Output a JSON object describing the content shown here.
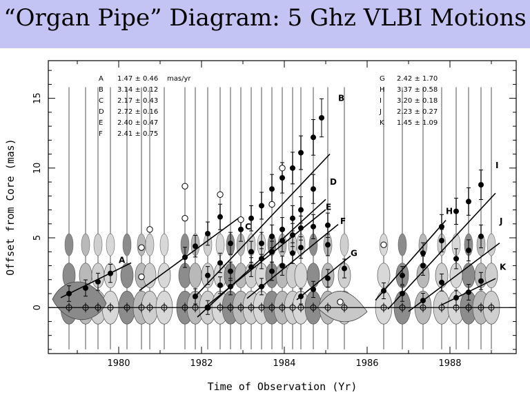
{
  "page": {
    "title": "“Organ Pipe” Diagram:  5 Ghz VLBI Motions"
  },
  "chart_data": {
    "type": "scatter",
    "title": "“Organ Pipe” Diagram:  5 Ghz VLBI Motions",
    "xlabel": "Time of Observation (Yr)",
    "ylabel": "Offset from Core (mas)",
    "xlim": [
      1978.3,
      1989.6
    ],
    "ylim": [
      -3.3,
      17.7
    ],
    "xticks": [
      1980,
      1982,
      1984,
      1986,
      1988
    ],
    "yticks": [
      0,
      5,
      10,
      15
    ],
    "units": "mas/yr",
    "legend_left": [
      {
        "id": "A",
        "text": "1.47 ± 0.46"
      },
      {
        "id": "B",
        "text": "3.14 ± 0.12"
      },
      {
        "id": "C",
        "text": "2.17 ± 0.43"
      },
      {
        "id": "D",
        "text": "2.72 ± 0.16"
      },
      {
        "id": "E",
        "text": "2.40 ± 0.47"
      },
      {
        "id": "F",
        "text": "2.41 ± 0.75"
      }
    ],
    "legend_right": [
      {
        "id": "G",
        "text": "2.42 ± 1.70"
      },
      {
        "id": "H",
        "text": "3.37 ± 0.58"
      },
      {
        "id": "I",
        "text": "3.20 ± 0.18"
      },
      {
        "id": "J",
        "text": "2.23 ± 0.27"
      },
      {
        "id": "K",
        "text": "1.45 ± 1.09"
      }
    ],
    "epochs": [
      1978.8,
      1979.2,
      1979.5,
      1979.8,
      1980.2,
      1980.55,
      1980.75,
      1981.1,
      1981.6,
      1981.85,
      1982.15,
      1982.45,
      1982.7,
      1982.95,
      1983.2,
      1983.45,
      1983.7,
      1983.95,
      1984.2,
      1984.4,
      1984.7,
      1985.05,
      1985.45,
      1986.4,
      1986.85,
      1987.35,
      1987.8,
      1988.15,
      1988.45,
      1988.75,
      1989.0
    ],
    "series": [
      {
        "name": "A",
        "slope": 1.47,
        "line": [
          1978.6,
          1980.3
        ],
        "label_at": [
          1980.0,
          3.2
        ],
        "points": [
          [
            1978.8,
            1.0
          ],
          [
            1979.2,
            1.4
          ],
          [
            1979.5,
            1.85
          ],
          [
            1979.8,
            2.45
          ]
        ]
      },
      {
        "name": "B",
        "slope": 3.14,
        "line": [
          1981.8,
          1985.1
        ],
        "label_at": [
          1985.3,
          14.8
        ],
        "points": [
          [
            1981.85,
            0.8
          ],
          [
            1982.15,
            2.3
          ],
          [
            1982.45,
            3.2
          ],
          [
            1982.7,
            4.6
          ],
          [
            1982.95,
            5.6
          ],
          [
            1983.2,
            6.4
          ],
          [
            1983.45,
            7.3
          ],
          [
            1983.7,
            8.5
          ],
          [
            1983.95,
            9.3
          ],
          [
            1984.2,
            10.0
          ],
          [
            1984.4,
            11.1
          ],
          [
            1984.7,
            12.2
          ],
          [
            1984.9,
            13.6
          ]
        ]
      },
      {
        "name": "C",
        "slope": 2.17,
        "line": [
          1980.5,
          1982.9
        ],
        "label_at": [
          1983.05,
          5.6
        ],
        "points": [
          [
            1981.6,
            3.6
          ],
          [
            1981.85,
            4.4
          ],
          [
            1982.15,
            5.3
          ],
          [
            1982.45,
            6.5
          ]
        ]
      },
      {
        "name": "D",
        "slope": 2.72,
        "line": [
          1981.9,
          1985.0
        ],
        "label_at": [
          1985.1,
          8.8
        ],
        "points": [
          [
            1982.15,
            0.0
          ],
          [
            1982.45,
            1.6
          ],
          [
            1982.7,
            2.6
          ],
          [
            1983.2,
            4.0
          ],
          [
            1983.45,
            4.6
          ],
          [
            1983.7,
            5.1
          ],
          [
            1983.95,
            5.6
          ],
          [
            1984.2,
            6.4
          ],
          [
            1984.4,
            7.0
          ],
          [
            1984.7,
            8.5
          ]
        ]
      },
      {
        "name": "E",
        "slope": 2.4,
        "line": [
          1982.1,
          1985.0
        ],
        "label_at": [
          1985.0,
          7.0
        ],
        "points": [
          [
            1982.7,
            1.5
          ],
          [
            1983.2,
            2.9
          ],
          [
            1983.45,
            3.5
          ],
          [
            1983.7,
            4.0
          ],
          [
            1983.95,
            4.8
          ],
          [
            1984.2,
            5.2
          ],
          [
            1984.4,
            5.7
          ],
          [
            1984.7,
            5.8
          ],
          [
            1985.05,
            5.9
          ]
        ]
      },
      {
        "name": "F",
        "slope": 2.41,
        "line": [
          1983.1,
          1985.3
        ],
        "label_at": [
          1985.35,
          6.0
        ],
        "points": [
          [
            1983.45,
            1.5
          ],
          [
            1983.7,
            2.6
          ],
          [
            1983.95,
            3.0
          ],
          [
            1984.2,
            3.9
          ],
          [
            1984.4,
            4.3
          ],
          [
            1985.05,
            4.5
          ]
        ]
      },
      {
        "name": "G",
        "slope": 2.42,
        "line": [
          1984.3,
          1985.6
        ],
        "label_at": [
          1985.6,
          3.7
        ],
        "points": [
          [
            1984.4,
            0.8
          ],
          [
            1984.7,
            1.3
          ],
          [
            1985.05,
            2.1
          ],
          [
            1985.45,
            2.8
          ]
        ]
      },
      {
        "name": "H",
        "slope": 3.37,
        "line": [
          1986.2,
          1987.9
        ],
        "label_at": [
          1987.9,
          6.7
        ],
        "points": [
          [
            1986.4,
            1.2
          ],
          [
            1986.85,
            2.3
          ],
          [
            1987.35,
            3.9
          ],
          [
            1987.8,
            5.8
          ]
        ]
      },
      {
        "name": "I",
        "slope": 3.2,
        "line": [
          1986.5,
          1989.1
        ],
        "label_at": [
          1989.1,
          10.0
        ],
        "points": [
          [
            1986.85,
            1.0
          ],
          [
            1987.35,
            3.0
          ],
          [
            1987.8,
            4.8
          ],
          [
            1988.15,
            6.9
          ],
          [
            1988.45,
            7.6
          ],
          [
            1988.75,
            8.8
          ]
        ]
      },
      {
        "name": "J",
        "slope": 2.23,
        "line": [
          1987.0,
          1989.2
        ],
        "label_at": [
          1989.2,
          6.0
        ],
        "points": [
          [
            1987.35,
            0.5
          ],
          [
            1987.8,
            1.8
          ],
          [
            1988.15,
            3.5
          ],
          [
            1988.45,
            4.1
          ],
          [
            1988.75,
            5.1
          ]
        ]
      },
      {
        "name": "K",
        "slope": 1.45,
        "line": [
          1987.8,
          1989.1
        ],
        "label_at": [
          1989.2,
          2.7
        ],
        "points": [
          [
            1988.15,
            0.7
          ],
          [
            1988.45,
            1.1
          ],
          [
            1988.75,
            1.9
          ]
        ]
      }
    ],
    "open_points": [
      [
        1981.6,
        8.7
      ],
      [
        1981.6,
        6.4
      ],
      [
        1982.45,
        8.1
      ],
      [
        1982.95,
        6.3
      ],
      [
        1983.7,
        7.4
      ],
      [
        1983.95,
        10.0
      ],
      [
        1980.55,
        4.3
      ],
      [
        1980.75,
        5.6
      ],
      [
        1980.55,
        2.2
      ],
      [
        1986.4,
        4.5
      ],
      [
        1985.35,
        0.4
      ]
    ]
  }
}
